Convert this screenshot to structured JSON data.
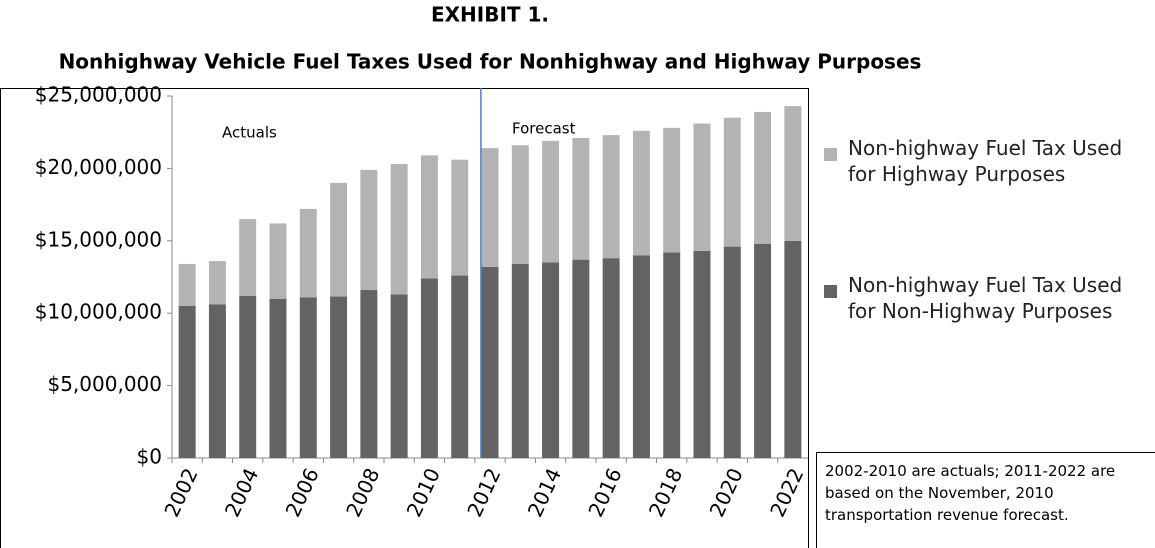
{
  "chart_data": {
    "type": "bar",
    "stacked": true,
    "title": "EXHIBIT 1.",
    "subtitle": "Nonhighway Vehicle Fuel Taxes Used for Nonhighway and Highway Purposes",
    "categories": [
      "2002",
      null,
      "2004",
      null,
      "2006",
      null,
      "2008",
      null,
      "2010",
      null,
      "2012",
      null,
      "2014",
      null,
      "2016",
      null,
      "2018",
      null,
      "2020",
      null,
      "2022"
    ],
    "series": [
      {
        "name": "Non-highway Fuel Tax Used for Non-Highway Purposes",
        "color": "#636363",
        "values": [
          10500000,
          10600000,
          11200000,
          11000000,
          11100000,
          11150000,
          11600000,
          11300000,
          12400000,
          12600000,
          13200000,
          13400000,
          13500000,
          13700000,
          13800000,
          14000000,
          14200000,
          14300000,
          14600000,
          14800000,
          15000000
        ]
      },
      {
        "name": "Non-highway Fuel Tax Used for Highway Purposes",
        "color": "#b3b3b3",
        "values": [
          2900000,
          3000000,
          5300000,
          5200000,
          6100000,
          7850000,
          8300000,
          9000000,
          8500000,
          8000000,
          8200000,
          8200000,
          8400000,
          8400000,
          8500000,
          8600000,
          8600000,
          8800000,
          8900000,
          9100000,
          9300000
        ]
      }
    ],
    "ylim": [
      0,
      25000000
    ],
    "yticks": [
      {
        "value": 0,
        "label": "$0"
      },
      {
        "value": 5000000,
        "label": "$5,000,000"
      },
      {
        "value": 10000000,
        "label": "$10,000,000"
      },
      {
        "value": 15000000,
        "label": "$15,000,000"
      },
      {
        "value": 20000000,
        "label": "$20,000,000"
      },
      {
        "value": 25000000,
        "label": "$25,000,000"
      }
    ],
    "grid": false,
    "legend": "right",
    "annotations": [
      "Actuals",
      "Forecast"
    ],
    "note": "2002-2010 are actuals; 2011-2022 are based on the November, 2010 transportation revenue forecast."
  }
}
